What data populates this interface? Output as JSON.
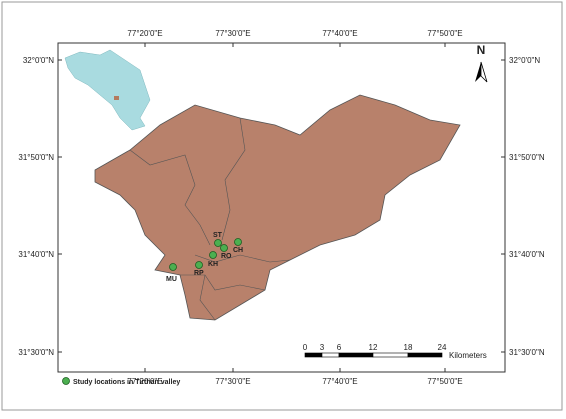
{
  "map": {
    "graticule": {
      "longitudes": [
        "77°20'0\"E",
        "77°30'0\"E",
        "77°40'0\"E",
        "77°50'0\"E"
      ],
      "latitudes": [
        "32°0'0\"N",
        "31°50'0\"N",
        "31°40'0\"N",
        "31°30'0\"N"
      ]
    },
    "north_arrow": "N",
    "sites": [
      "ST",
      "CH",
      "RO",
      "KH",
      "RP",
      "MU"
    ],
    "scale_bar": {
      "ticks": [
        0,
        3,
        6,
        12,
        18,
        24
      ],
      "unit": "Kilometers"
    },
    "legend": "Study locations in Tirthan valley"
  }
}
